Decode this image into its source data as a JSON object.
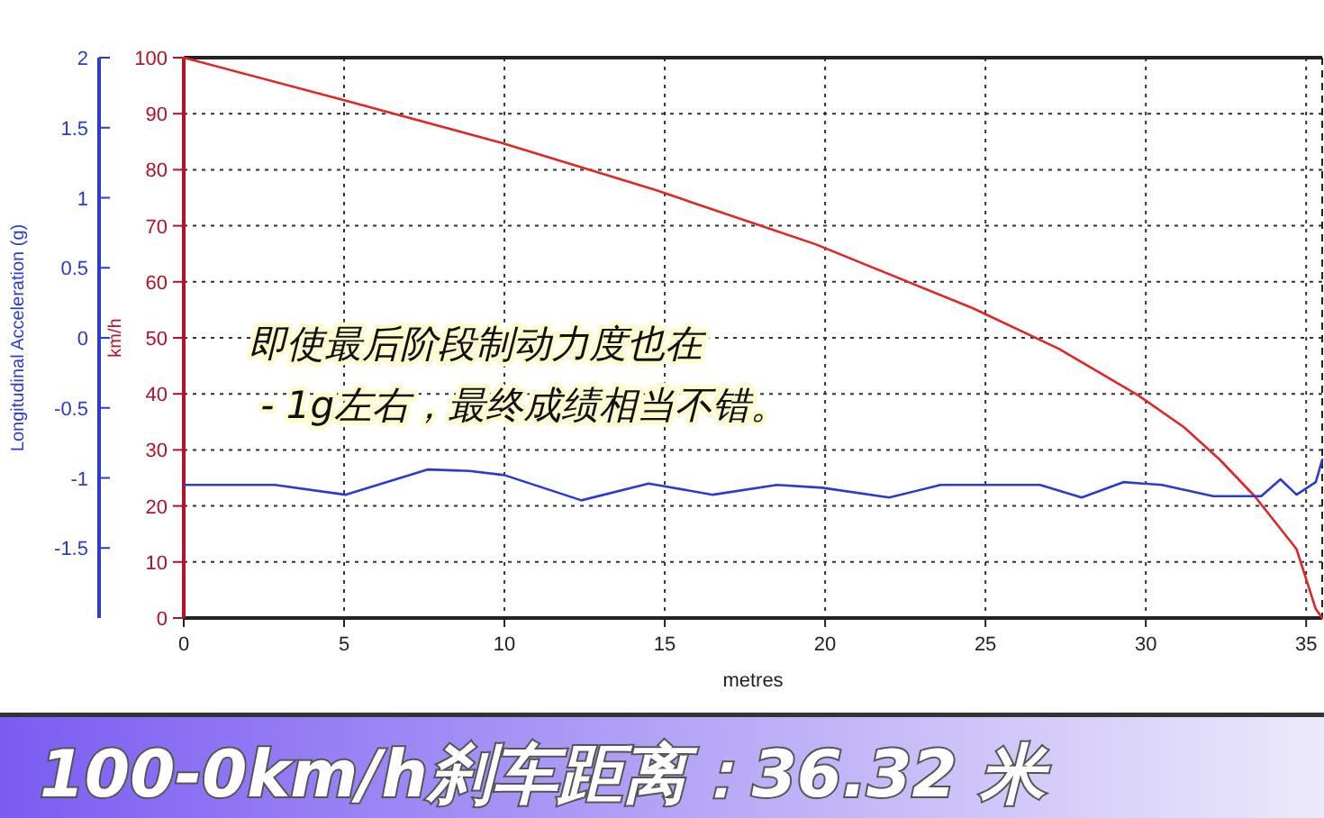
{
  "chart_data": {
    "type": "line",
    "title": "100-0km/h刹车距离：36.32 米",
    "xlabel": "metres",
    "ylabel": "km/h",
    "y2label": "Longitudinal Acceleration (g)",
    "annotations": [
      "即使最后阶段制动力度也在\n - 1g左右，最终成绩相当不错。"
    ],
    "xlim": [
      0,
      35.5
    ],
    "xticks": [
      0,
      5,
      10,
      15,
      20,
      25,
      30,
      35
    ],
    "ylim": [
      0,
      100
    ],
    "yticks": [
      0,
      10,
      20,
      30,
      40,
      50,
      60,
      70,
      80,
      90,
      100
    ],
    "y2lim": [
      -2,
      2
    ],
    "y2ticks": [
      -1.5,
      -1,
      -0.5,
      0,
      0.5,
      1,
      1.5,
      2
    ],
    "grid": true,
    "marker": "none",
    "line_style": "solid",
    "series": [
      {
        "color": "#e02626",
        "x": [
          0,
          4.95,
          9.9,
          14.7,
          19.7,
          24.6,
          27.3,
          29.8,
          31.2,
          32.3,
          33.4,
          34.7,
          35.3,
          35.5
        ],
        "values": [
          100,
          92.5,
          84.8,
          76.4,
          66.7,
          55.3,
          48,
          39.6,
          34,
          28.3,
          21.7,
          12.3,
          1.6,
          0
        ]
      },
      {
        "color": "#2a3bd0",
        "axis": "y2",
        "x": [
          0,
          2.84,
          5.04,
          7.6,
          8.9,
          10.0,
          12.4,
          14.5,
          16.5,
          18.5,
          19.9,
          22.0,
          23.6,
          26.7,
          28.0,
          29.3,
          30.5,
          32.1,
          33.6,
          34.2,
          34.7,
          35.3,
          35.5
        ],
        "values": [
          -1.05,
          -1.05,
          -1.12,
          -0.94,
          -0.95,
          -0.98,
          -1.16,
          -1.04,
          -1.12,
          -1.05,
          -1.07,
          -1.14,
          -1.05,
          -1.05,
          -1.14,
          -1.03,
          -1.05,
          -1.13,
          -1.13,
          -1.01,
          -1.12,
          -1.03,
          -0.87
        ]
      }
    ]
  }
}
